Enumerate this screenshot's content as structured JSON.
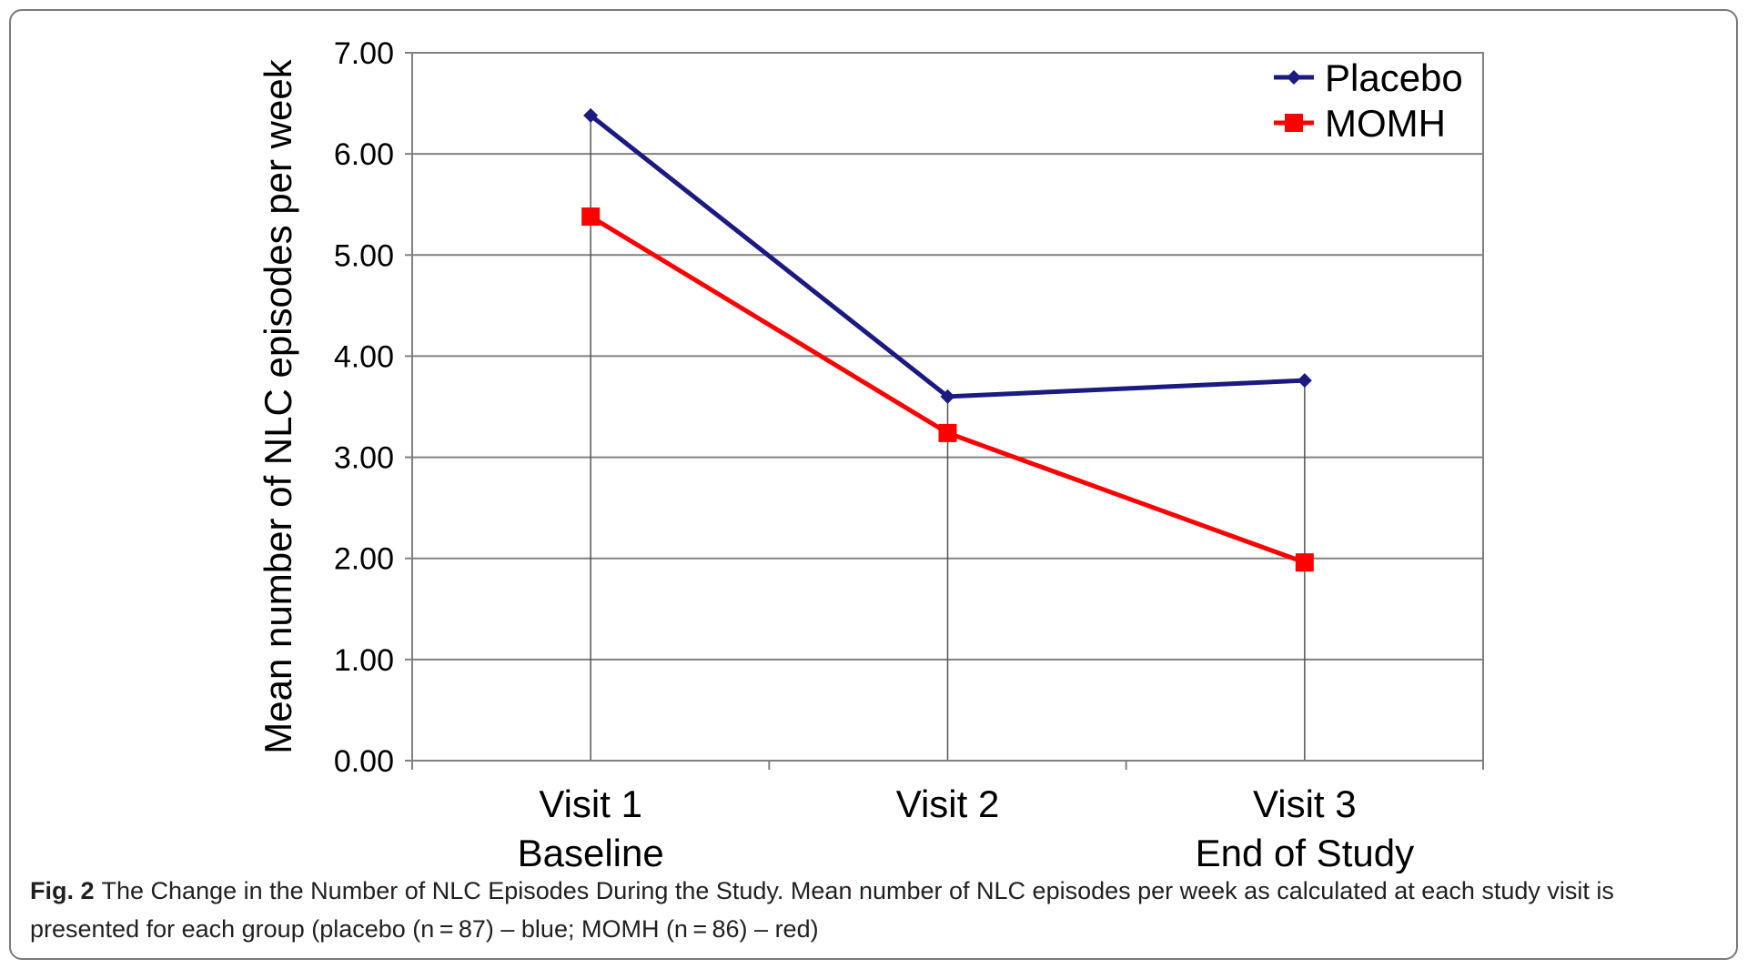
{
  "figure": {
    "caption_label": "Fig. 2",
    "caption_text": "The Change in the Number of NLC Episodes During the Study. Mean number of NLC episodes per week as calculated at each study visit is presented for each group (placebo (n = 87) – blue; MOMH (n = 86) – red)"
  },
  "chart_data": {
    "type": "line",
    "title": "",
    "categories": [
      {
        "line1": "Visit 1",
        "line2": "Baseline"
      },
      {
        "line1": "Visit 2",
        "line2": ""
      },
      {
        "line1": "Visit 3",
        "line2": "End of Study"
      }
    ],
    "ylabel": "Mean number of NLC episodes per week",
    "xlabel": "",
    "ylim": [
      0,
      7
    ],
    "yticks": [
      "0.00",
      "1.00",
      "2.00",
      "3.00",
      "4.00",
      "5.00",
      "6.00",
      "7.00"
    ],
    "grid": true,
    "legend_position": "top-right",
    "series": [
      {
        "name": "Placebo",
        "color": "#1a1a80",
        "marker": "diamond",
        "values": [
          6.38,
          3.6,
          3.76
        ]
      },
      {
        "name": "MOMH",
        "color": "#ff0000",
        "marker": "square",
        "values": [
          5.38,
          3.24,
          1.96
        ]
      }
    ]
  }
}
